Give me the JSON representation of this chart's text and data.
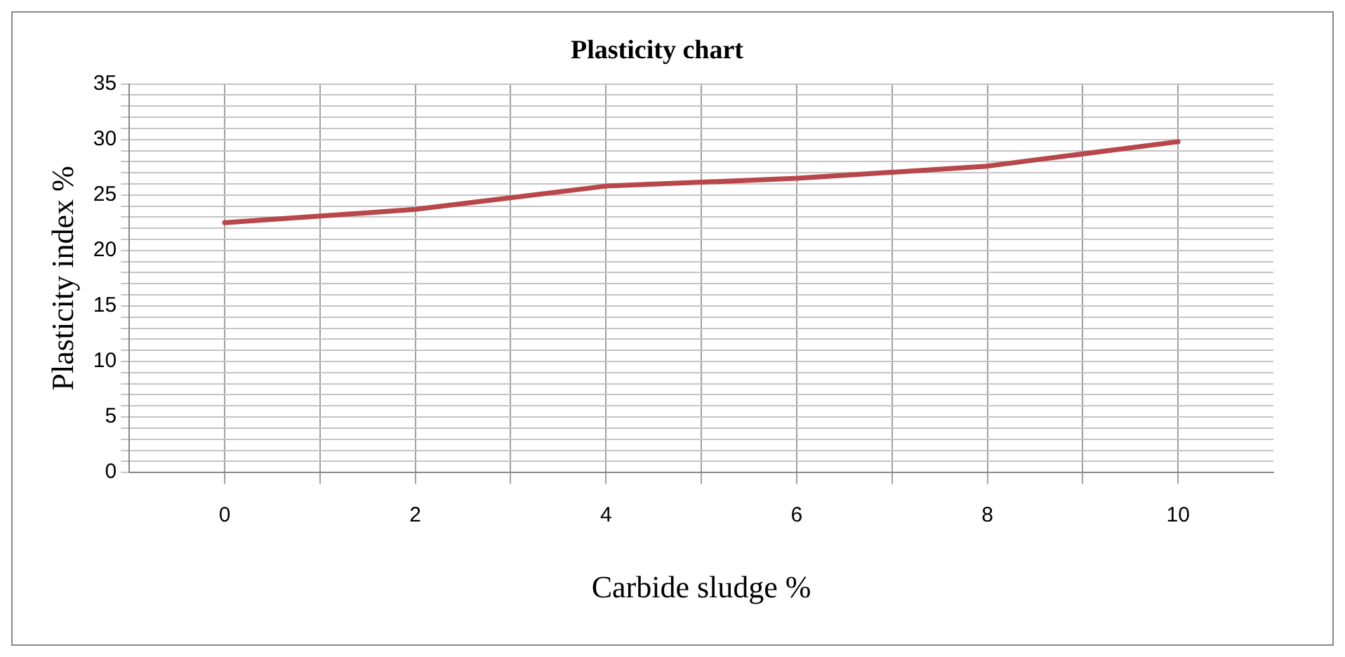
{
  "chart_data": {
    "type": "line",
    "title": "Plasticity chart",
    "xlabel": "Carbide sludge %",
    "ylabel": "Plasticity index %",
    "x": [
      0,
      2,
      4,
      6,
      8,
      10
    ],
    "series": [
      {
        "color": "#b8474b",
        "values": [
          22.5,
          23.7,
          25.8,
          26.5,
          27.6,
          29.8
        ]
      }
    ],
    "xlim": [
      -1,
      11
    ],
    "xticks": [
      0,
      {
        "value": 1,
        "label": null
      },
      2,
      {
        "value": 3,
        "label": null
      },
      4,
      {
        "value": 5,
        "label": null
      },
      6,
      {
        "value": 7,
        "label": null
      },
      8,
      {
        "value": 9,
        "label": null
      },
      10
    ],
    "ylim": [
      0,
      35
    ],
    "yticks": [
      0,
      {
        "value": 1,
        "label": null
      },
      {
        "value": 2,
        "label": null
      },
      {
        "value": 3,
        "label": null
      },
      {
        "value": 4,
        "label": null
      },
      5,
      {
        "value": 6,
        "label": null
      },
      {
        "value": 7,
        "label": null
      },
      {
        "value": 8,
        "label": null
      },
      {
        "value": 9,
        "label": null
      },
      10,
      {
        "value": 11,
        "label": null
      },
      {
        "value": 12,
        "label": null
      },
      {
        "value": 13,
        "label": null
      },
      {
        "value": 14,
        "label": null
      },
      15,
      {
        "value": 16,
        "label": null
      },
      {
        "value": 17,
        "label": null
      },
      {
        "value": 18,
        "label": null
      },
      {
        "value": 19,
        "label": null
      },
      20,
      {
        "value": 21,
        "label": null
      },
      {
        "value": 22,
        "label": null
      },
      {
        "value": 23,
        "label": null
      },
      {
        "value": 24,
        "label": null
      },
      25,
      {
        "value": 26,
        "label": null
      },
      {
        "value": 27,
        "label": null
      },
      {
        "value": 28,
        "label": null
      },
      {
        "value": 29,
        "label": null
      },
      30,
      {
        "value": 31,
        "label": null
      },
      {
        "value": 32,
        "label": null
      },
      {
        "value": 33,
        "label": null
      },
      {
        "value": 34,
        "label": null
      },
      35
    ],
    "grid": true,
    "marker": "none",
    "line_style": "solid"
  }
}
